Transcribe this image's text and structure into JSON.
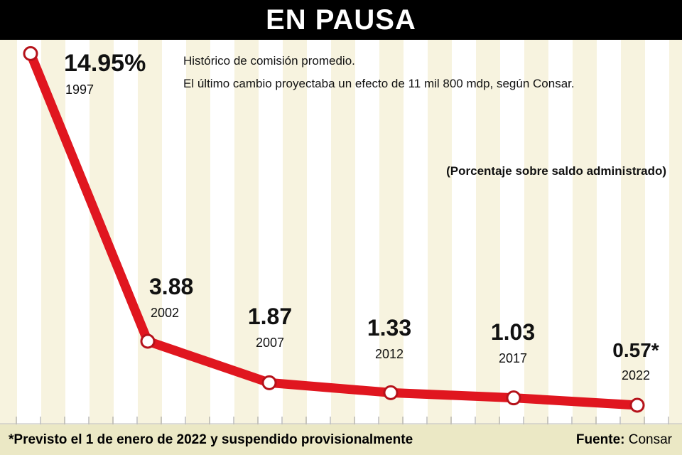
{
  "title": "EN PAUSA",
  "chart_data": {
    "type": "line",
    "title": "EN PAUSA",
    "subtitle": [
      "Histórico de comisión promedio.",
      "El último cambio proyectaba un efecto de 11 mil 800 mdp, según Consar."
    ],
    "unit_note": "(Porcentaje sobre saldo administrado)",
    "categories": [
      "1997",
      "2002",
      "2007",
      "2012",
      "2017",
      "2022"
    ],
    "series": [
      {
        "name": "Comisión promedio",
        "values": [
          14.95,
          3.88,
          1.87,
          1.33,
          1.03,
          0.57
        ]
      }
    ],
    "data_labels": [
      "14.95%",
      "3.88",
      "1.87",
      "1.33",
      "1.03",
      "0.57*"
    ],
    "xlabel": "",
    "ylabel": "",
    "grid": false,
    "line_color": "#e0161f"
  },
  "footer": {
    "note": "*Previsto el 1 de enero de 2022 y suspendido provisionalmente",
    "source_label": "Fuente:",
    "source": "Consar"
  }
}
